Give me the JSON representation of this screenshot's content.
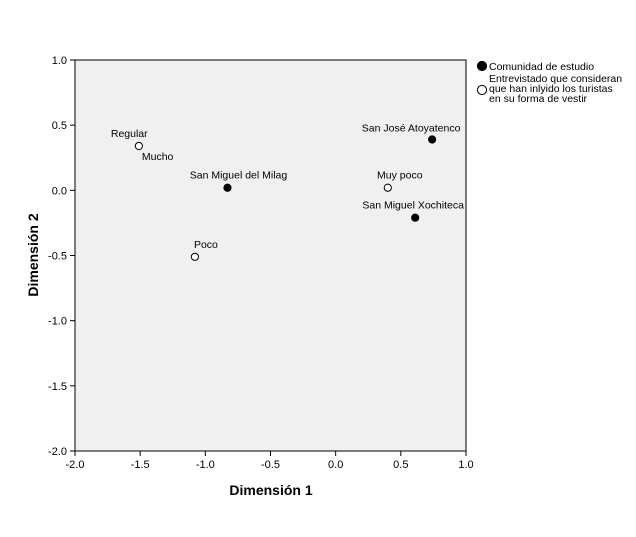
{
  "chart_data": {
    "type": "scatter",
    "xlabel": "Dimensión 1",
    "ylabel": "Dimensión 2",
    "xlim": [
      -2.0,
      1.0
    ],
    "ylim": [
      -2.0,
      1.0
    ],
    "x_ticks": [
      "-2.0",
      "-1.5",
      "-1.0",
      "-0.5",
      "0.0",
      "0.5",
      "1.0"
    ],
    "y_ticks": [
      "1.0",
      "0.5",
      "0.0",
      "-0.5",
      "-1.0",
      "-1.5",
      "-2.0"
    ],
    "grid": false,
    "background_color": "#f0f0f0",
    "legend_position": "right",
    "series": [
      {
        "name": "Comunidad de estudio",
        "marker": "filled-circle",
        "points": [
          {
            "label": "San José Atoyatenco",
            "x": 0.74,
            "y": 0.39
          },
          {
            "label": "San Miguel del Milag",
            "x": -0.83,
            "y": 0.02
          },
          {
            "label": "San Miguel Xochiteca",
            "x": 0.61,
            "y": -0.21
          }
        ]
      },
      {
        "name_lines": [
          "Entrevistado que consideran",
          "que han inlyido los turistas",
          "en su forma de vestir"
        ],
        "marker": "hollow-circle",
        "points": [
          {
            "label": "Regular",
            "x": -1.51,
            "y": 0.34
          },
          {
            "label": "Mucho",
            "x": -1.51,
            "y": 0.34
          },
          {
            "label": "Muy poco",
            "x": 0.4,
            "y": 0.02
          },
          {
            "label": "Poco",
            "x": -1.08,
            "y": -0.51
          }
        ]
      }
    ]
  }
}
